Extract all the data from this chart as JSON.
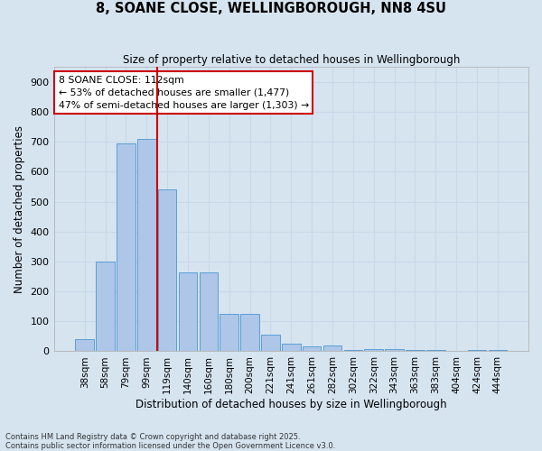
{
  "title1": "8, SOANE CLOSE, WELLINGBOROUGH, NN8 4SU",
  "title2": "Size of property relative to detached houses in Wellingborough",
  "xlabel": "Distribution of detached houses by size in Wellingborough",
  "ylabel": "Number of detached properties",
  "categories": [
    "38sqm",
    "58sqm",
    "79sqm",
    "99sqm",
    "119sqm",
    "140sqm",
    "160sqm",
    "180sqm",
    "200sqm",
    "221sqm",
    "241sqm",
    "261sqm",
    "282sqm",
    "302sqm",
    "322sqm",
    "343sqm",
    "363sqm",
    "383sqm",
    "404sqm",
    "424sqm",
    "444sqm"
  ],
  "values": [
    40,
    300,
    695,
    710,
    540,
    265,
    265,
    125,
    125,
    55,
    25,
    15,
    18,
    5,
    8,
    8,
    3,
    3,
    0,
    3,
    3
  ],
  "bar_color": "#aec6e8",
  "bar_edge_color": "#5a9fd4",
  "grid_color": "#c8d8e8",
  "background_color": "#d6e4f0",
  "property_line_color": "#cc0000",
  "annotation_text": "8 SOANE CLOSE: 112sqm\n← 53% of detached houses are smaller (1,477)\n47% of semi-detached houses are larger (1,303) →",
  "annotation_box_color": "#ffffff",
  "annotation_box_edge": "#cc0000",
  "ylim": [
    0,
    950
  ],
  "yticks": [
    0,
    100,
    200,
    300,
    400,
    500,
    600,
    700,
    800,
    900
  ],
  "footer1": "Contains HM Land Registry data © Crown copyright and database right 2025.",
  "footer2": "Contains public sector information licensed under the Open Government Licence v3.0."
}
